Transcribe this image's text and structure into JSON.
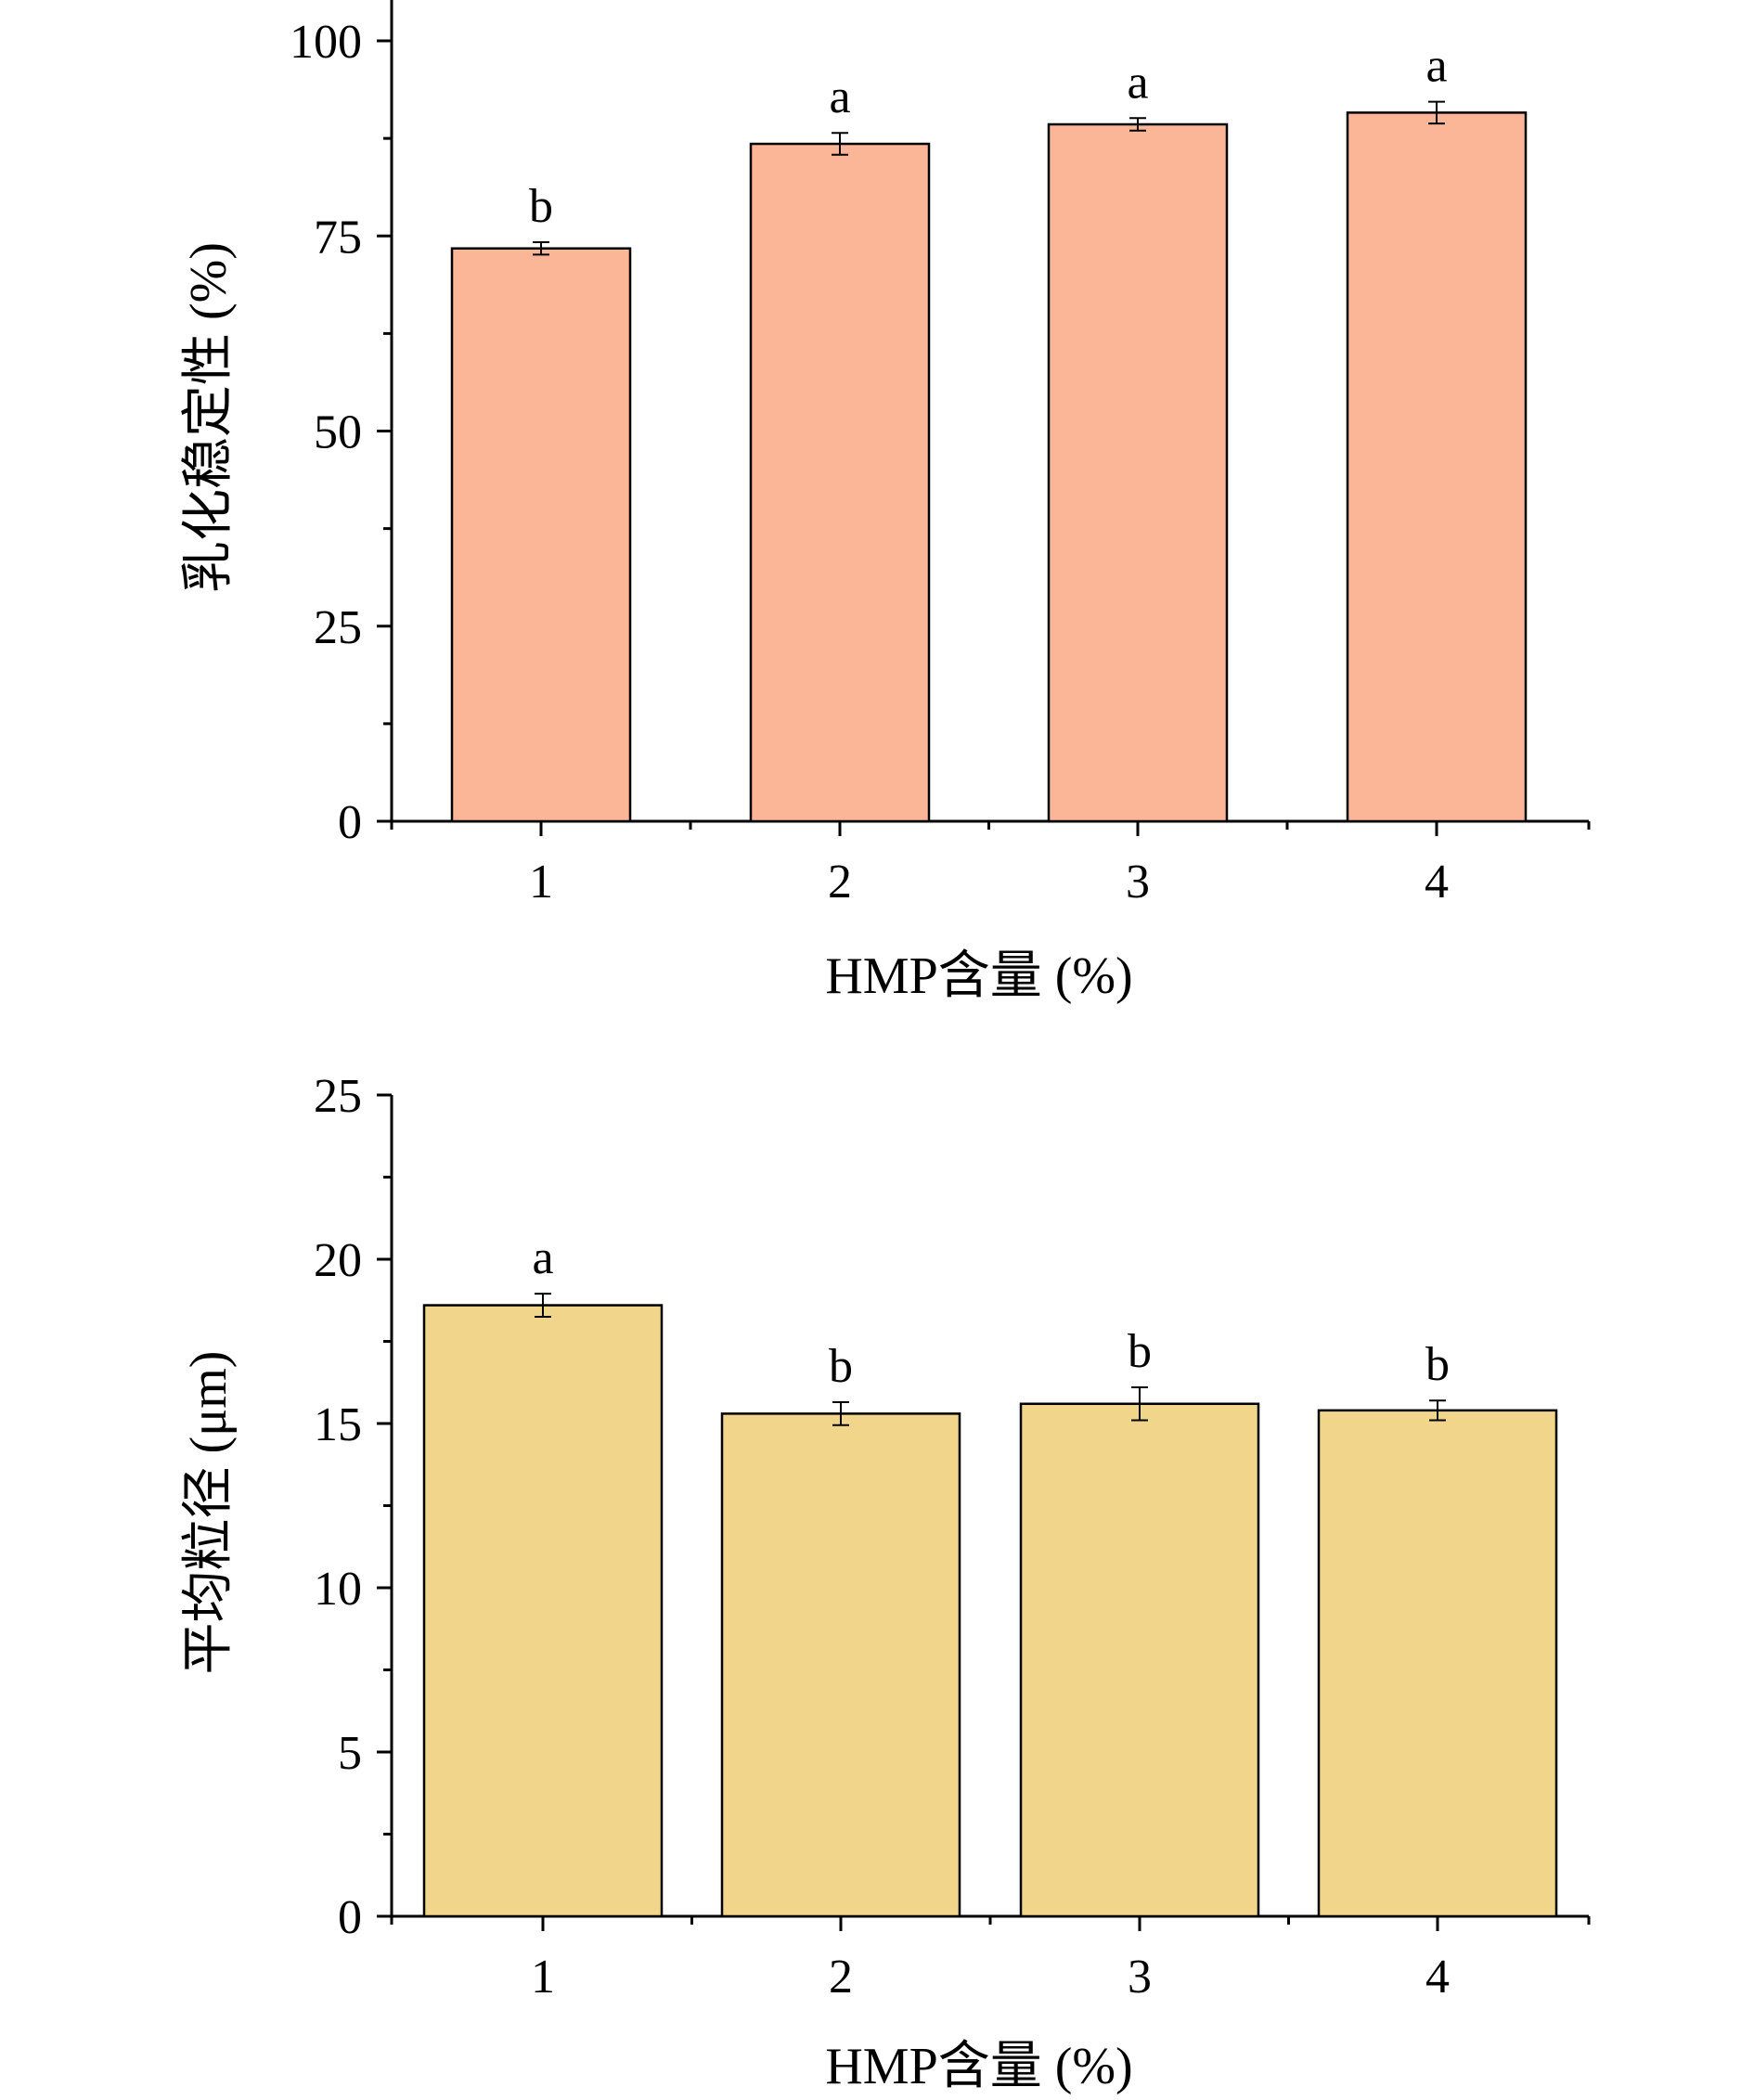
{
  "chart_data": [
    {
      "type": "bar",
      "categories": [
        "1",
        "2",
        "3",
        "4"
      ],
      "values": [
        73.4,
        86.8,
        89.3,
        90.8
      ],
      "errors": [
        0.8,
        1.4,
        0.8,
        1.4
      ],
      "letters": [
        "b",
        "a",
        "a",
        "a"
      ],
      "xlabel": "HMP含量 (%)",
      "ylabel": "乳化稳定性 (%)",
      "ylim": [
        0,
        100
      ],
      "yticks": [
        "0",
        "25",
        "50",
        "75",
        "100"
      ],
      "minor_step": 12.5,
      "bar_color": "#FBB597",
      "grid": false,
      "legend": "none"
    },
    {
      "type": "bar",
      "categories": [
        "1",
        "2",
        "3",
        "4"
      ],
      "values": [
        18.6,
        15.3,
        15.6,
        15.4
      ],
      "errors": [
        0.35,
        0.35,
        0.5,
        0.3
      ],
      "letters": [
        "a",
        "b",
        "b",
        "b"
      ],
      "xlabel": "HMP含量 (%)",
      "ylabel": "平均粒径 (μm)",
      "ylim": [
        0,
        25
      ],
      "yticks": [
        "0",
        "5",
        "10",
        "15",
        "20",
        "25"
      ],
      "minor_step": 2.5,
      "bar_color": "#F1D58A",
      "grid": false,
      "legend": "none"
    }
  ]
}
